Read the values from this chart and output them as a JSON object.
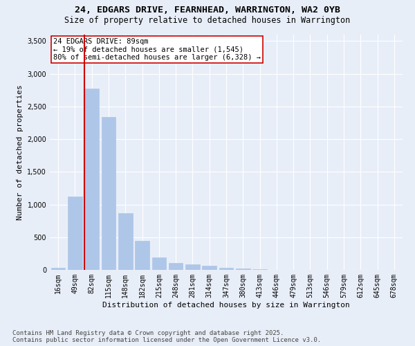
{
  "title_line1": "24, EDGARS DRIVE, FEARNHEAD, WARRINGTON, WA2 0YB",
  "title_line2": "Size of property relative to detached houses in Warrington",
  "xlabel": "Distribution of detached houses by size in Warrington",
  "ylabel": "Number of detached properties",
  "categories": [
    "16sqm",
    "49sqm",
    "82sqm",
    "115sqm",
    "148sqm",
    "182sqm",
    "215sqm",
    "248sqm",
    "281sqm",
    "314sqm",
    "347sqm",
    "380sqm",
    "413sqm",
    "446sqm",
    "479sqm",
    "513sqm",
    "546sqm",
    "579sqm",
    "612sqm",
    "645sqm",
    "678sqm"
  ],
  "values": [
    30,
    1120,
    2775,
    2340,
    870,
    445,
    195,
    110,
    90,
    60,
    30,
    20,
    8,
    5,
    3,
    2,
    1,
    1,
    0,
    0,
    0
  ],
  "bar_color": "#aec6e8",
  "bar_edgecolor": "#aec6e8",
  "vline_color": "#cc0000",
  "annotation_text": "24 EDGARS DRIVE: 89sqm\n← 19% of detached houses are smaller (1,545)\n80% of semi-detached houses are larger (6,328) →",
  "annotation_box_color": "#cc0000",
  "ylim": [
    0,
    3600
  ],
  "yticks": [
    0,
    500,
    1000,
    1500,
    2000,
    2500,
    3000,
    3500
  ],
  "bg_color": "#e8eef8",
  "footer_line1": "Contains HM Land Registry data © Crown copyright and database right 2025.",
  "footer_line2": "Contains public sector information licensed under the Open Government Licence v3.0.",
  "title_fontsize": 9.5,
  "subtitle_fontsize": 8.5,
  "xlabel_fontsize": 8,
  "ylabel_fontsize": 8,
  "tick_fontsize": 7,
  "footer_fontsize": 6.5,
  "annotation_fontsize": 7.5,
  "vline_index": 2
}
